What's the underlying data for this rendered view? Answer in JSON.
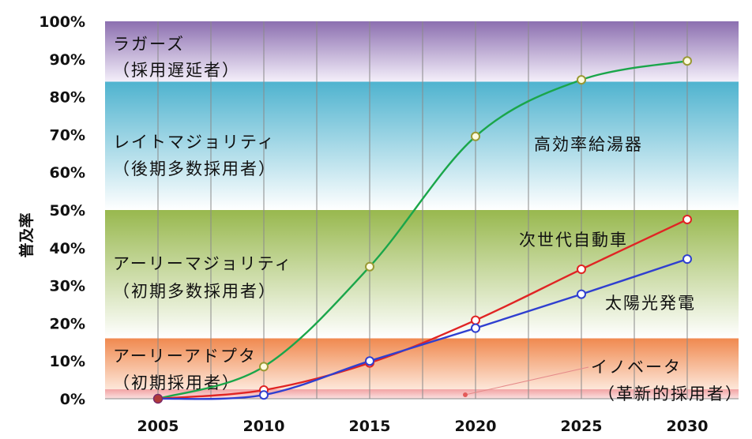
{
  "chart_data": {
    "type": "line",
    "ylabel": "普及率",
    "x": [
      2005,
      2010,
      2015,
      2020,
      2025,
      2030
    ],
    "xticks": [
      "2005",
      "2010",
      "2015",
      "2020",
      "2025",
      "2030"
    ],
    "yticks": [
      "0%",
      "10%",
      "20%",
      "30%",
      "40%",
      "50%",
      "60%",
      "70%",
      "80%",
      "90%",
      "100%"
    ],
    "ylim": [
      0,
      100
    ],
    "grid": {
      "vertical": true
    },
    "bands": [
      {
        "from": 84,
        "to": 100,
        "label1": "ラガーズ",
        "label2": "（採用遅延者）",
        "color": "#8c6fb0"
      },
      {
        "from": 50,
        "to": 84,
        "label1": "レイトマジョリティ",
        "label2": "（後期多数採用者）",
        "color": "#4fb3cf"
      },
      {
        "from": 16,
        "to": 50,
        "label1": "アーリーマジョリティ",
        "label2": "（初期多数採用者）",
        "color": "#98b84e"
      },
      {
        "from": 2.5,
        "to": 16,
        "label1": "アーリーアドプタ",
        "label2": "（初期採用者）",
        "color": "#f0894f"
      },
      {
        "from": 0,
        "to": 2.5,
        "label1": "イノベータ",
        "label2": "（革新的採用者）",
        "color": "#f2a3a3"
      }
    ],
    "series": [
      {
        "name": "高効率給湯器",
        "color": "#1aa64a",
        "marker_fill": "#fdfbe0",
        "marker_stroke": "#999933",
        "values": [
          0,
          8.5,
          35,
          69.5,
          84.5,
          89.5
        ]
      },
      {
        "name": "次世代自動車",
        "color": "#e02424",
        "marker_fill": "#ffffff",
        "marker_stroke": "#e02424",
        "values": [
          0,
          2.3,
          9.5,
          20.8,
          34.3,
          47.5
        ]
      },
      {
        "name": "太陽光発電",
        "color": "#2f3fd0",
        "marker_fill": "#ffffff",
        "marker_stroke": "#2f3fd0",
        "values": [
          0,
          1.0,
          10.0,
          18.7,
          27.7,
          37.0
        ]
      }
    ]
  }
}
